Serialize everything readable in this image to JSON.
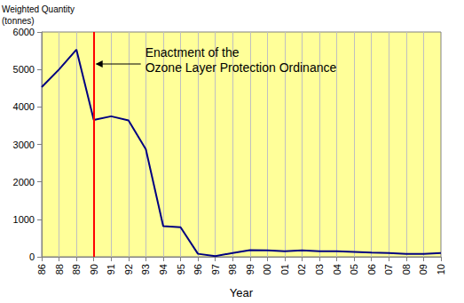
{
  "chart_data": {
    "type": "line",
    "y_label": "Weighted Quantity\n(tonnes)",
    "x_label": "Year",
    "categories": [
      "86",
      "88",
      "89",
      "90",
      "91",
      "92",
      "93",
      "94",
      "95",
      "96",
      "97",
      "98",
      "99",
      "00",
      "01",
      "02",
      "03",
      "04",
      "05",
      "06",
      "07",
      "08",
      "09",
      "10"
    ],
    "values": [
      4530,
      5000,
      5530,
      3650,
      3750,
      3640,
      2870,
      820,
      790,
      80,
      20,
      100,
      180,
      170,
      150,
      170,
      150,
      150,
      130,
      110,
      100,
      80,
      80,
      100
    ],
    "color": "#000080",
    "ylim": [
      0,
      6000
    ],
    "yticks": [
      0,
      1000,
      2000,
      3000,
      4000,
      5000,
      6000
    ],
    "grid": true,
    "annotations": [
      {
        "text": "Enactment of the\nOzone Layer Protection Ordinance",
        "x": "90",
        "color": "#ff0000"
      }
    ]
  }
}
